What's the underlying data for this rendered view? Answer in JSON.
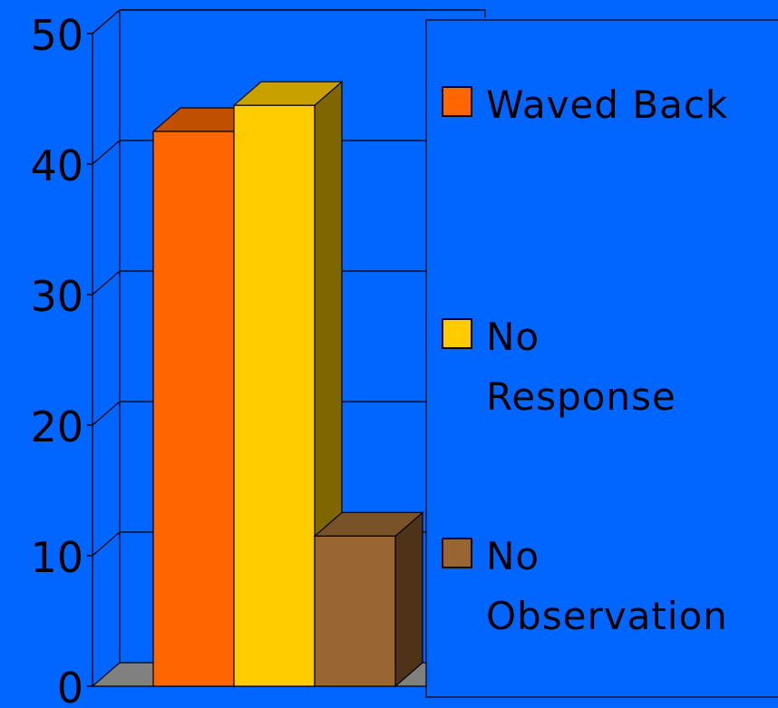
{
  "chart_data": {
    "type": "bar",
    "three_d": true,
    "categories": [
      "Waved Back",
      "No Response",
      "No Observation"
    ],
    "values": [
      42.5,
      44.5,
      11.5
    ],
    "colors": {
      "background": "#0066FF",
      "bars": [
        "#FF6600",
        "#FFCC00",
        "#996633"
      ],
      "bar_tops": [
        "#C05000",
        "#C8A000",
        "#7A5228"
      ],
      "bar_sides": [
        "#A34000",
        "#806600",
        "#4F3318"
      ],
      "floor": "#808080"
    },
    "ylim": [
      0,
      50
    ],
    "yticks": [
      "0",
      "10",
      "20",
      "30",
      "40",
      "50"
    ],
    "grid": true,
    "legend": {
      "placement": "right",
      "entries": [
        {
          "label_lines": [
            "Waved Back"
          ]
        },
        {
          "label_lines": [
            "No",
            "Response"
          ]
        },
        {
          "label_lines": [
            "No",
            "Observation"
          ]
        }
      ]
    }
  }
}
